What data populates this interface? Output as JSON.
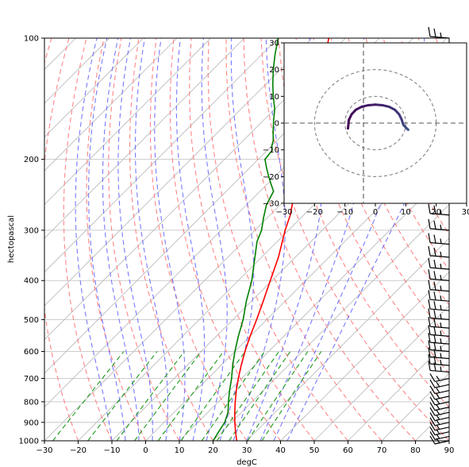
{
  "chart_data": [
    {
      "type": "line",
      "subtype": "skew-t log-p diagram",
      "xlabel": "degC",
      "ylabel": "hectopascal",
      "xlim": [
        -30,
        90
      ],
      "ylim": [
        1000,
        100
      ],
      "y_scale": "log",
      "x_ticks": [
        "−30",
        "−20",
        "−10",
        "0",
        "10",
        "20",
        "30",
        "40",
        "50",
        "60",
        "70",
        "80",
        "90"
      ],
      "y_ticks": [
        "100",
        "200",
        "300",
        "400",
        "500",
        "600",
        "700",
        "800",
        "900",
        "1000"
      ],
      "grid": true,
      "series": [
        {
          "color": "#ff0000",
          "points": [
            [
              1000,
              27
            ],
            [
              950,
              24
            ],
            [
              900,
              21
            ],
            [
              850,
              18
            ],
            [
              800,
              15
            ],
            [
              750,
              12
            ],
            [
              700,
              9
            ],
            [
              650,
              6
            ],
            [
              600,
              3
            ],
            [
              550,
              0
            ],
            [
              500,
              -3
            ],
            [
              450,
              -6.5
            ],
            [
              400,
              -10.5
            ],
            [
              350,
              -15
            ],
            [
              300,
              -21
            ],
            [
              275,
              -24
            ],
            [
              250,
              -28
            ],
            [
              225,
              -31
            ],
            [
              200,
              -36
            ],
            [
              190,
              -38
            ],
            [
              180,
              -40
            ],
            [
              170,
              -42
            ],
            [
              160,
              -44
            ],
            [
              150,
              -47
            ],
            [
              140,
              -50
            ],
            [
              130,
              -53
            ],
            [
              120,
              -57
            ],
            [
              110,
              -61
            ],
            [
              100,
              -65
            ]
          ]
        },
        {
          "color": "#008000",
          "points": [
            [
              1000,
              20
            ],
            [
              950,
              19
            ],
            [
              900,
              18
            ],
            [
              850,
              16
            ],
            [
              800,
              13
            ],
            [
              750,
              10
            ],
            [
              700,
              7
            ],
            [
              650,
              3.5
            ],
            [
              600,
              0
            ],
            [
              550,
              -3.5
            ],
            [
              500,
              -7
            ],
            [
              450,
              -11.5
            ],
            [
              400,
              -16
            ],
            [
              350,
              -22
            ],
            [
              320,
              -26
            ],
            [
              300,
              -28
            ],
            [
              280,
              -31
            ],
            [
              260,
              -34
            ],
            [
              250,
              -35
            ],
            [
              240,
              -36
            ],
            [
              230,
              -39
            ],
            [
              220,
              -42
            ],
            [
              210,
              -45
            ],
            [
              200,
              -48
            ],
            [
              190,
              -48.5
            ],
            [
              185,
              -50
            ],
            [
              180,
              -51
            ],
            [
              170,
              -54
            ],
            [
              160,
              -57
            ],
            [
              150,
              -60
            ],
            [
              140,
              -64
            ],
            [
              130,
              -68
            ],
            [
              120,
              -72
            ],
            [
              110,
              -76
            ],
            [
              100,
              -80
            ]
          ]
        }
      ],
      "reference_lines": {
        "isotherms": {
          "color": "#b8b8b8",
          "step_degC": 10
        },
        "dry_adiabats": {
          "color": "#ff7070",
          "style": "dashed"
        },
        "moist_adiabats": {
          "color": "#6060ff",
          "style": "dashed"
        },
        "mixing_ratio": {
          "color": "#1a9a1a",
          "style": "dashed",
          "top_hpa": 600
        }
      },
      "wind_barbs": {
        "color": "#000000",
        "pressures_hpa": [
          1000,
          975,
          950,
          925,
          900,
          875,
          850,
          825,
          800,
          775,
          750,
          725,
          700,
          675,
          650,
          625,
          600,
          575,
          550,
          525,
          500,
          475,
          450,
          425,
          400,
          375,
          350,
          325,
          300,
          275,
          250,
          225,
          200,
          175,
          150,
          125,
          100
        ]
      }
    },
    {
      "type": "line",
      "subtype": "hodograph",
      "xlim": [
        -30,
        30
      ],
      "ylim": [
        -30,
        30
      ],
      "x_ticks": [
        "−30",
        "−20",
        "−10",
        "0",
        "10",
        "20",
        "30"
      ],
      "y_ticks": [
        "30",
        "20",
        "10",
        "0",
        "−10",
        "−20",
        "−30"
      ],
      "range_rings": [
        10,
        20
      ],
      "trace": {
        "u": [
          -9,
          -8.7,
          -7.8,
          -6.4,
          -4.5,
          -2.3,
          0,
          2.3,
          4.5,
          6.4,
          7.8,
          8.7,
          9,
          9.3,
          10,
          10.5,
          10.8
        ],
        "v": [
          -2,
          1.2,
          3.3,
          5,
          6.1,
          6.7,
          6.9,
          6.7,
          6.1,
          5,
          3.3,
          1.2,
          0,
          -0.8,
          -1.6,
          -2.2,
          -2.5
        ],
        "color_start": "#440154",
        "color_end": "#3b528b"
      }
    }
  ]
}
